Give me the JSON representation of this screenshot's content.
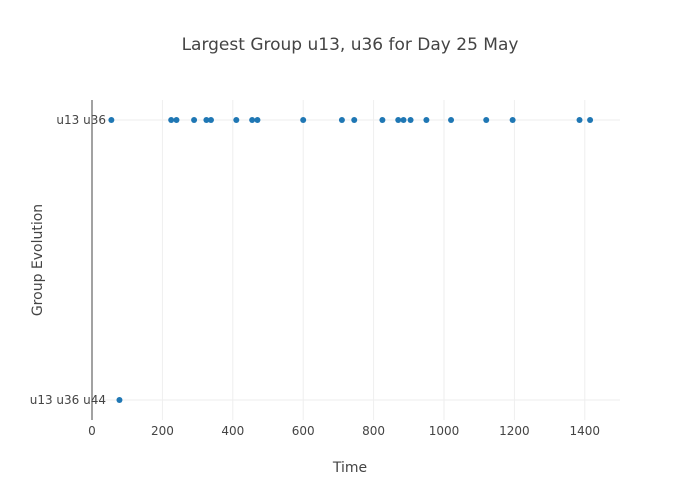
{
  "chart_data": {
    "type": "scatter",
    "title": "Largest Group u13, u36 for Day 25 May",
    "xlabel": "Time",
    "ylabel": "Group Evolution",
    "xlim": [
      0,
      1500
    ],
    "x_ticks": [
      0,
      200,
      400,
      600,
      800,
      1000,
      1200,
      1400
    ],
    "categories": [
      "u13 u36",
      "u13 u36 u44"
    ],
    "grid": true,
    "marker_color": "#1f77b4",
    "series": [
      {
        "points": [
          {
            "x": 55,
            "y": "u13 u36"
          },
          {
            "x": 78,
            "y": "u13 u36 u44"
          },
          {
            "x": 225,
            "y": "u13 u36"
          },
          {
            "x": 240,
            "y": "u13 u36"
          },
          {
            "x": 290,
            "y": "u13 u36"
          },
          {
            "x": 325,
            "y": "u13 u36"
          },
          {
            "x": 338,
            "y": "u13 u36"
          },
          {
            "x": 410,
            "y": "u13 u36"
          },
          {
            "x": 455,
            "y": "u13 u36"
          },
          {
            "x": 470,
            "y": "u13 u36"
          },
          {
            "x": 600,
            "y": "u13 u36"
          },
          {
            "x": 710,
            "y": "u13 u36"
          },
          {
            "x": 745,
            "y": "u13 u36"
          },
          {
            "x": 825,
            "y": "u13 u36"
          },
          {
            "x": 870,
            "y": "u13 u36"
          },
          {
            "x": 885,
            "y": "u13 u36"
          },
          {
            "x": 905,
            "y": "u13 u36"
          },
          {
            "x": 950,
            "y": "u13 u36"
          },
          {
            "x": 1020,
            "y": "u13 u36"
          },
          {
            "x": 1120,
            "y": "u13 u36"
          },
          {
            "x": 1195,
            "y": "u13 u36"
          },
          {
            "x": 1385,
            "y": "u13 u36"
          },
          {
            "x": 1415,
            "y": "u13 u36"
          }
        ]
      }
    ]
  }
}
